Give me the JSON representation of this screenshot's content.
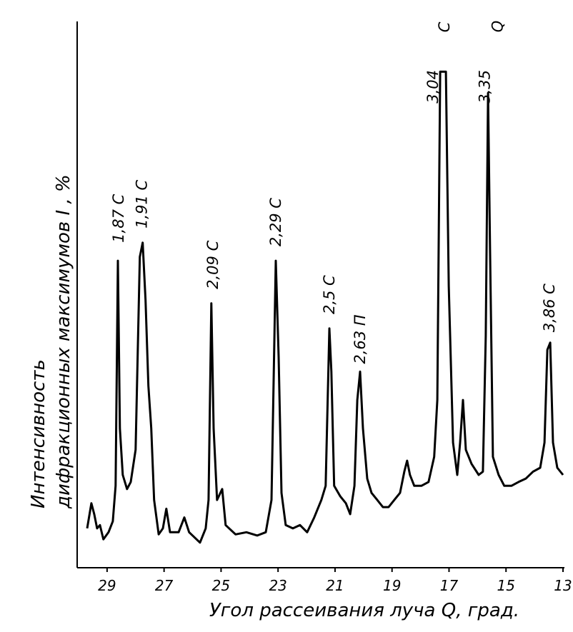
{
  "chart_data": {
    "type": "line",
    "xlabel": "Угол рассеивания луча Q, град.",
    "ylabel": [
      "Интенсивность",
      "дифракционных максимумов  I , %"
    ],
    "xlim": [
      30.05,
      12.95
    ],
    "ylim": [
      0,
      100
    ],
    "xticks": [
      29,
      27,
      25,
      23,
      21,
      19,
      17,
      15,
      13
    ],
    "color": "#000000",
    "grid": false,
    "x": [
      29.7,
      29.55,
      29.45,
      29.35,
      29.25,
      29.13,
      28.95,
      28.8,
      28.7,
      28.62,
      28.55,
      28.45,
      28.3,
      28.17,
      28.0,
      27.85,
      27.75,
      27.65,
      27.55,
      27.45,
      27.35,
      27.19,
      27.04,
      26.92,
      26.79,
      26.49,
      26.29,
      26.12,
      25.74,
      25.54,
      25.44,
      25.34,
      25.26,
      25.14,
      24.96,
      24.84,
      24.49,
      24.11,
      23.73,
      23.43,
      23.23,
      23.08,
      22.98,
      22.88,
      22.73,
      22.48,
      22.23,
      21.98,
      21.73,
      21.48,
      21.33,
      21.2,
      21.13,
      21.03,
      20.82,
      20.62,
      20.47,
      20.32,
      20.22,
      20.12,
      20.02,
      19.87,
      19.72,
      19.52,
      19.32,
      19.12,
      18.92,
      18.72,
      18.57,
      18.47,
      18.37,
      18.22,
      17.97,
      17.72,
      17.52,
      17.41,
      17.31,
      17.11,
      17.01,
      16.86,
      16.71,
      16.61,
      16.51,
      16.41,
      16.21,
      15.96,
      15.81,
      15.71,
      15.63,
      15.56,
      15.46,
      15.26,
      15.06,
      14.81,
      14.56,
      14.31,
      14.05,
      13.8,
      13.65,
      13.55,
      13.45,
      13.35,
      13.2,
      13.0
    ],
    "values": [
      7.2,
      11.8,
      9.8,
      7.2,
      7.8,
      5.2,
      6.5,
      8.5,
      15.0,
      56.2,
      25.5,
      17.0,
      14.4,
      15.7,
      21.6,
      56.9,
      59.5,
      49.0,
      33.3,
      25.5,
      12.4,
      6.1,
      7.2,
      10.8,
      6.5,
      6.5,
      9.2,
      6.5,
      4.6,
      7.2,
      12.4,
      48.4,
      25.5,
      12.4,
      14.4,
      7.8,
      6.1,
      6.5,
      5.9,
      6.5,
      12.4,
      56.2,
      38.6,
      13.7,
      7.8,
      7.2,
      7.8,
      6.5,
      9.2,
      12.4,
      15.0,
      43.8,
      35.9,
      15.0,
      13.1,
      11.8,
      9.8,
      15.0,
      30.7,
      35.9,
      25.5,
      16.3,
      13.7,
      12.4,
      11.1,
      11.1,
      12.4,
      13.7,
      17.6,
      19.6,
      17.0,
      15.0,
      15.0,
      15.7,
      20.3,
      30.7,
      90.8,
      90.8,
      51.6,
      22.9,
      17.0,
      22.9,
      30.7,
      21.6,
      19.0,
      17.0,
      17.6,
      42.5,
      86.9,
      58.2,
      20.3,
      17.0,
      15.0,
      15.0,
      15.7,
      16.3,
      17.6,
      18.3,
      22.9,
      39.9,
      41.2,
      22.9,
      18.3,
      17.0
    ],
    "annotations": [
      {
        "text": "1,87 C",
        "x": 28.62,
        "y": 59.5
      },
      {
        "text": "1,91 C",
        "x": 27.8,
        "y": 62.1
      },
      {
        "text": "2,09 C",
        "x": 25.31,
        "y": 51.0
      },
      {
        "text": "2,29 C",
        "x": 23.11,
        "y": 58.8
      },
      {
        "text": "2,5 C",
        "x": 21.23,
        "y": 46.4
      },
      {
        "text": "2,63 П",
        "x": 20.15,
        "y": 37.3
      },
      {
        "text": "3,04",
        "x": 17.59,
        "y": 85.0
      },
      {
        "text": "C",
        "x": 17.19,
        "y": 98.0
      },
      {
        "text": "3,35",
        "x": 15.77,
        "y": 85.0
      },
      {
        "text": "Q",
        "x": 15.32,
        "y": 98.0
      },
      {
        "text": "3,86 C",
        "x": 13.5,
        "y": 43.1
      }
    ]
  }
}
